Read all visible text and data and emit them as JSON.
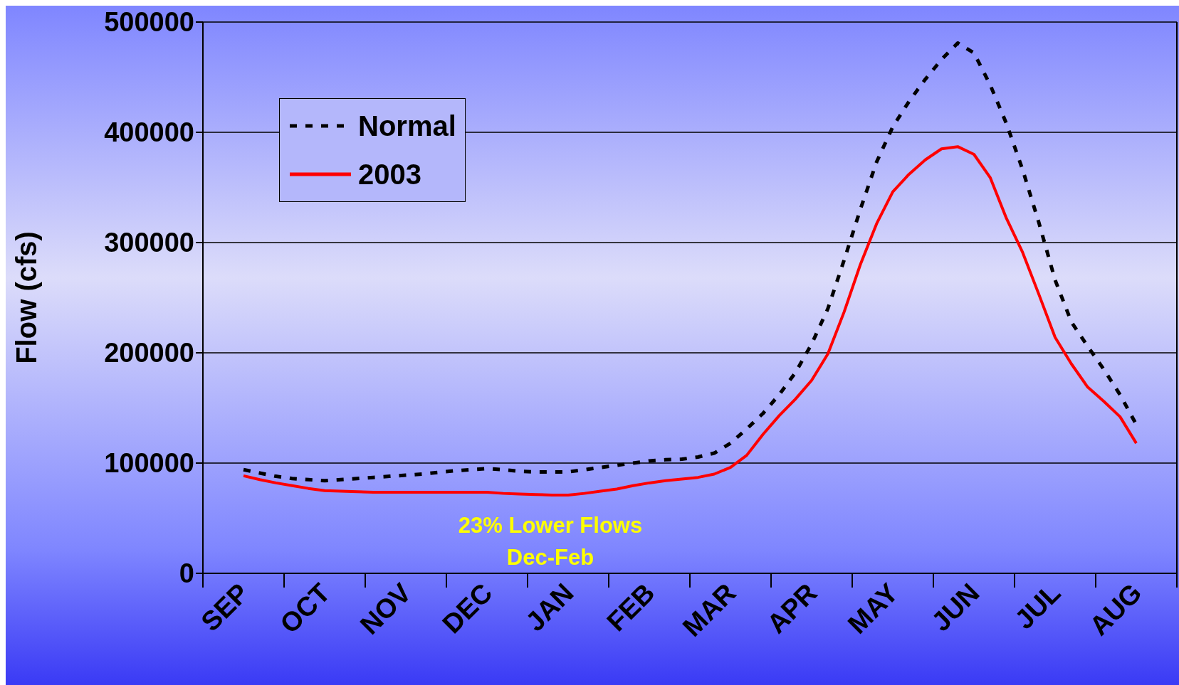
{
  "chart_data": {
    "type": "line",
    "ylabel": "Flow (cfs)",
    "categories": [
      null,
      null,
      "SEP",
      null,
      null,
      null,
      null,
      "OCT",
      null,
      null,
      null,
      null,
      "NOV",
      null,
      null,
      null,
      null,
      "DEC",
      null,
      null,
      null,
      null,
      "JAN",
      null,
      null,
      null,
      null,
      "FEB",
      null,
      null,
      null,
      null,
      "MAR",
      null,
      null,
      null,
      null,
      "APR",
      null,
      null,
      null,
      null,
      "MAY",
      null,
      null,
      null,
      null,
      "JUN",
      null,
      null,
      null,
      null,
      "JUL",
      null,
      null,
      null,
      null,
      "AUG",
      null,
      null
    ],
    "ylim": [
      0,
      500000
    ],
    "yticks": [
      0,
      100000,
      200000,
      300000,
      400000,
      500000
    ],
    "grid": "y",
    "legend": "top left",
    "marker": "none",
    "annotations": [
      "23% Lower Flows Dec-Feb"
    ],
    "series": [
      {
        "name": "Normal",
        "color": "#000000",
        "line_style": "dashed",
        "values": [
          null,
          null,
          94000,
          91000,
          88000,
          86000,
          85000,
          84000,
          85000,
          86000,
          87000,
          88000,
          89000,
          90000,
          91500,
          93000,
          94000,
          95000,
          94000,
          92500,
          92000,
          92000,
          92000,
          94000,
          96000,
          98000,
          100000,
          102000,
          103000,
          103500,
          105500,
          109000,
          118000,
          131000,
          145000,
          162000,
          182000,
          208000,
          240000,
          284000,
          330000,
          373000,
          405000,
          428000,
          448000,
          466000,
          481000,
          472000,
          443000,
          408000,
          366000,
          318000,
          266000,
          228000,
          206000,
          185000,
          162000,
          135000,
          null,
          null
        ]
      },
      {
        "name": "2003",
        "color": "#ff0000",
        "line_style": "solid",
        "values": [
          null,
          null,
          88500,
          85000,
          82000,
          79500,
          77000,
          75000,
          74500,
          74000,
          73500,
          73500,
          73500,
          73500,
          73500,
          73500,
          73500,
          73500,
          72500,
          72000,
          71500,
          71000,
          71000,
          72500,
          74500,
          76500,
          79500,
          82000,
          84000,
          85500,
          87000,
          90000,
          96000,
          107000,
          126000,
          143000,
          158000,
          175000,
          199000,
          237000,
          280000,
          317000,
          346000,
          362000,
          375000,
          385000,
          387000,
          380000,
          359000,
          322000,
          291000,
          253000,
          214000,
          190000,
          169000,
          156000,
          142000,
          118000,
          null,
          null
        ]
      }
    ]
  }
}
